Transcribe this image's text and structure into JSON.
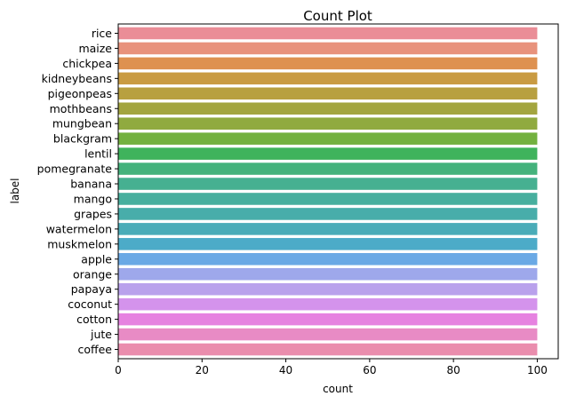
{
  "chart_data": {
    "type": "bar",
    "orientation": "horizontal",
    "title": "Count Plot",
    "xlabel": "count",
    "ylabel": "label",
    "xlim": [
      0,
      105
    ],
    "xticks": [
      0,
      20,
      40,
      60,
      80,
      100
    ],
    "grid": false,
    "legend": "none",
    "categories": [
      "rice",
      "maize",
      "chickpea",
      "kidneybeans",
      "pigeonpeas",
      "mothbeans",
      "mungbean",
      "blackgram",
      "lentil",
      "pomegranate",
      "banana",
      "mango",
      "grapes",
      "watermelon",
      "muskmelon",
      "apple",
      "orange",
      "papaya",
      "coconut",
      "cotton",
      "jute",
      "coffee"
    ],
    "values": [
      100,
      100,
      100,
      100,
      100,
      100,
      100,
      100,
      100,
      100,
      100,
      100,
      100,
      100,
      100,
      100,
      100,
      100,
      100,
      100,
      100,
      100
    ],
    "colors": [
      "#ea8d97",
      "#e8927c",
      "#de9150",
      "#c99b42",
      "#b8a040",
      "#a3a53f",
      "#90aa3f",
      "#73b13f",
      "#3fb35c",
      "#44b27c",
      "#46b091",
      "#47af9e",
      "#48adaa",
      "#4aacb8",
      "#4cabc8",
      "#6aa9e5",
      "#9ea8eb",
      "#b9a1ec",
      "#d493ec",
      "#e682e0",
      "#e88bc5",
      "#ea8dad"
    ]
  }
}
